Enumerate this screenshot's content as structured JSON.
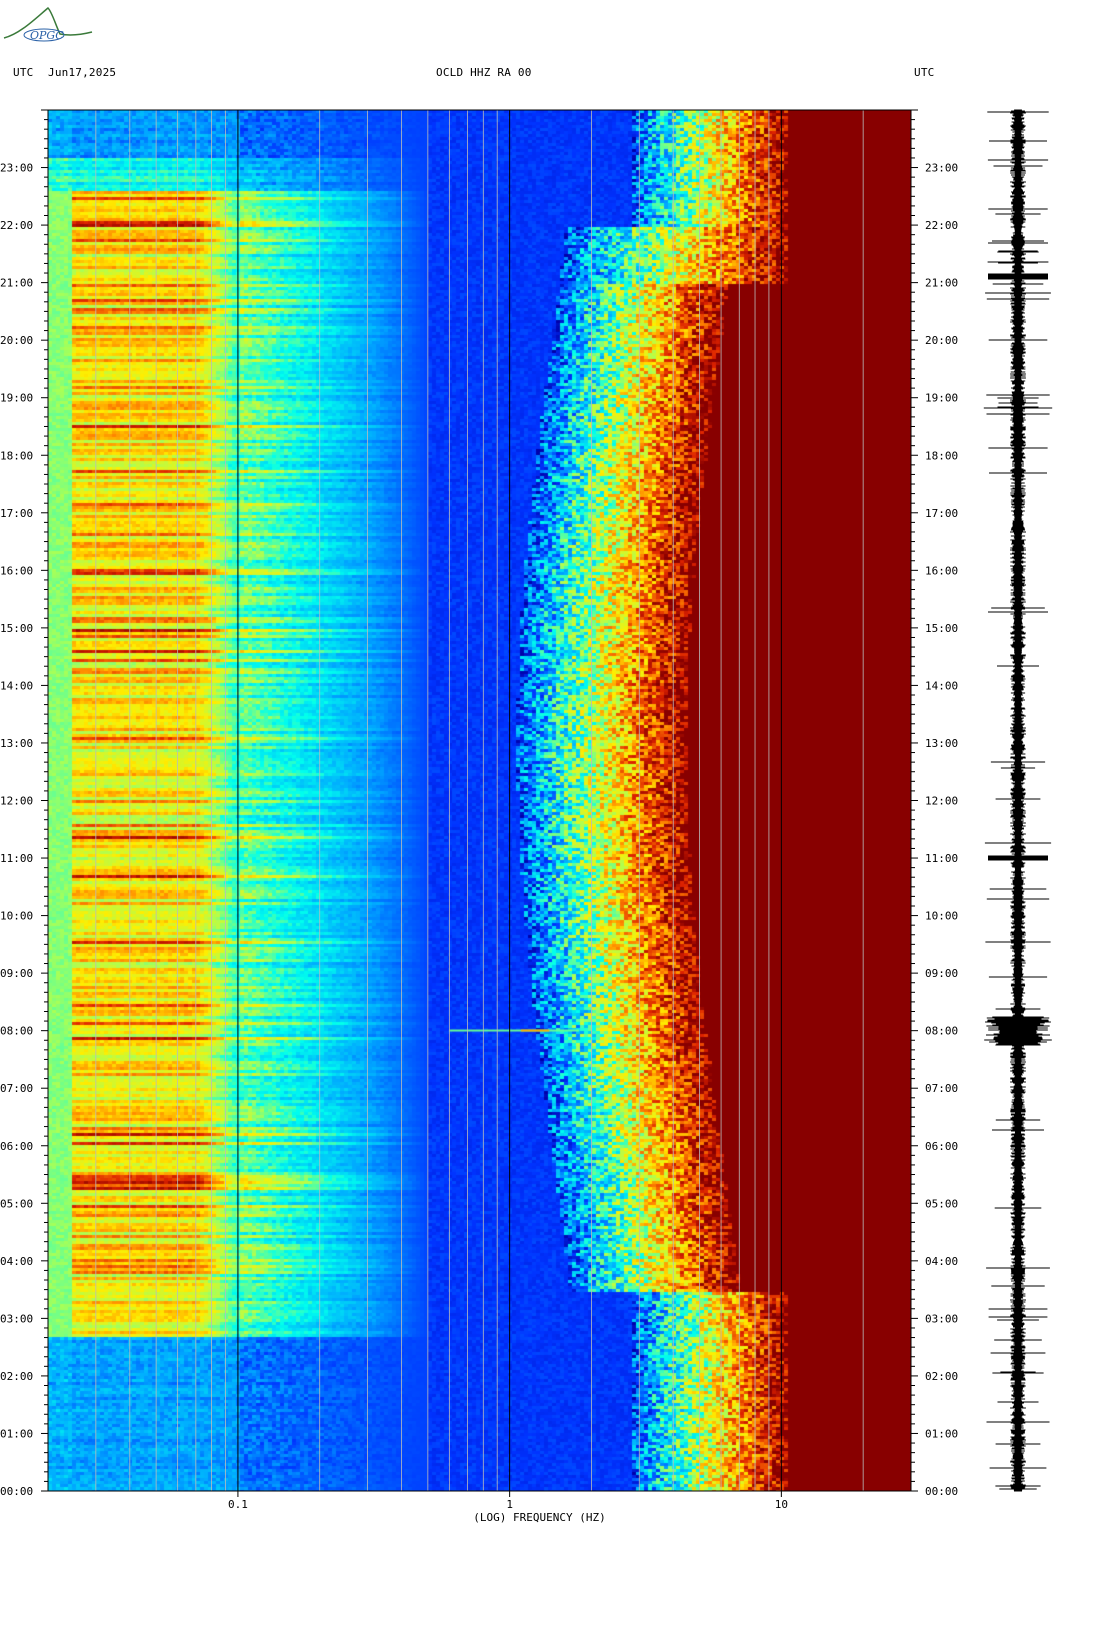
{
  "header": {
    "left_tz": "UTC",
    "date": "Jun17,2025",
    "station": "OCLD HHZ RA 00",
    "right_tz": "UTC"
  },
  "logo": {
    "text": "OPGC"
  },
  "chart_data": {
    "type": "heatmap",
    "title": "OCLD HHZ RA 00",
    "xlabel": "(LOG) FREQUENCY (HZ)",
    "xscale": "log",
    "xlim": [
      0.02,
      30
    ],
    "x_tick_labels": [
      "0.1",
      "1",
      "10"
    ],
    "x_tick_values": [
      0.1,
      1,
      10
    ],
    "y_tick_labels": [
      "23:00",
      "22:00",
      "21:00",
      "20:00",
      "19:00",
      "18:00",
      "17:00",
      "16:00",
      "15:00",
      "14:00",
      "13:00",
      "12:00",
      "11:00",
      "10:00",
      "09:00",
      "08:00",
      "07:00",
      "06:00",
      "05:00",
      "04:00",
      "03:00",
      "02:00",
      "01:00",
      "00:00"
    ],
    "y_tick_hours": [
      23,
      22,
      21,
      20,
      19,
      18,
      17,
      16,
      15,
      14,
      13,
      12,
      11,
      10,
      9,
      8,
      7,
      6,
      5,
      4,
      3,
      2,
      1,
      0
    ],
    "ylim_hours": [
      0,
      24
    ],
    "colormap": [
      "#0000aa",
      "#0033ff",
      "#00aaff",
      "#00ffee",
      "#aaff55",
      "#ffee00",
      "#ff8800",
      "#dd2200",
      "#880000"
    ],
    "waveform": "seismogram trace, 24 h"
  }
}
